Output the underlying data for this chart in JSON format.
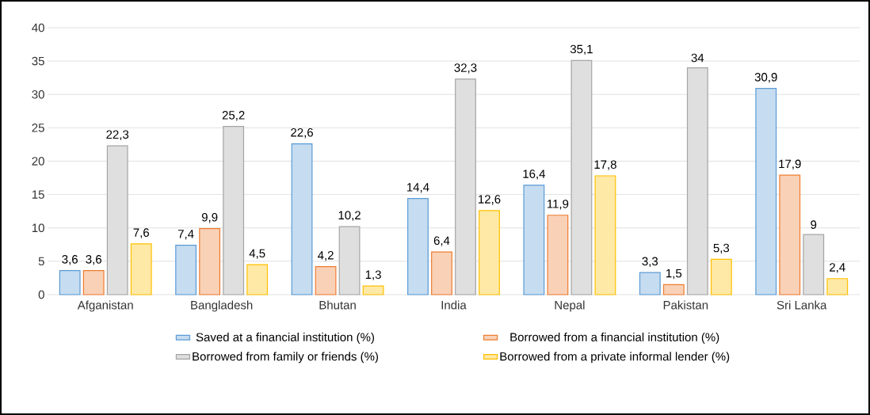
{
  "chart_data": {
    "type": "bar",
    "categories": [
      "Afganistan",
      "Bangladesh",
      "Bhutan",
      "India",
      "Nepal",
      "Pakistan",
      "Sri Lanka"
    ],
    "series": [
      {
        "name": "Saved at a financial institution (%)",
        "color": "#5b9bd5",
        "values": [
          3.6,
          7.4,
          22.6,
          14.4,
          16.4,
          3.3,
          30.9
        ],
        "value_labels": [
          "3,6",
          "7,4",
          "22,6",
          "14,4",
          "16,4",
          "3,3",
          "30,9"
        ]
      },
      {
        "name": "Borrowed from a financial institution (%)",
        "color": "#ed7d31",
        "values": [
          3.6,
          9.9,
          4.2,
          6.4,
          11.9,
          1.5,
          17.9
        ],
        "value_labels": [
          "3,6",
          "9,9",
          "4,2",
          "6,4",
          "11,9",
          "1,5",
          "17,9"
        ]
      },
      {
        "name": "Borrowed from family or friends (%)",
        "color": "#a5a5a5",
        "values": [
          22.3,
          25.2,
          10.2,
          32.3,
          35.1,
          34,
          9
        ],
        "value_labels": [
          "22,3",
          "25,2",
          "10,2",
          "32,3",
          "35,1",
          "34",
          "9"
        ]
      },
      {
        "name": "Borrowed from a private informal lender (%)",
        "color": "#ffc000",
        "values": [
          7.6,
          4.5,
          1.3,
          12.6,
          17.8,
          5.3,
          2.4
        ],
        "value_labels": [
          "7,6",
          "4,5",
          "1,3",
          "12,6",
          "17,8",
          "5,3",
          "2,4"
        ]
      }
    ],
    "ylim": [
      0,
      40
    ],
    "yticks": [
      0,
      5,
      10,
      15,
      20,
      25,
      30,
      35,
      40
    ],
    "grid": "y",
    "legend": "bottom"
  }
}
